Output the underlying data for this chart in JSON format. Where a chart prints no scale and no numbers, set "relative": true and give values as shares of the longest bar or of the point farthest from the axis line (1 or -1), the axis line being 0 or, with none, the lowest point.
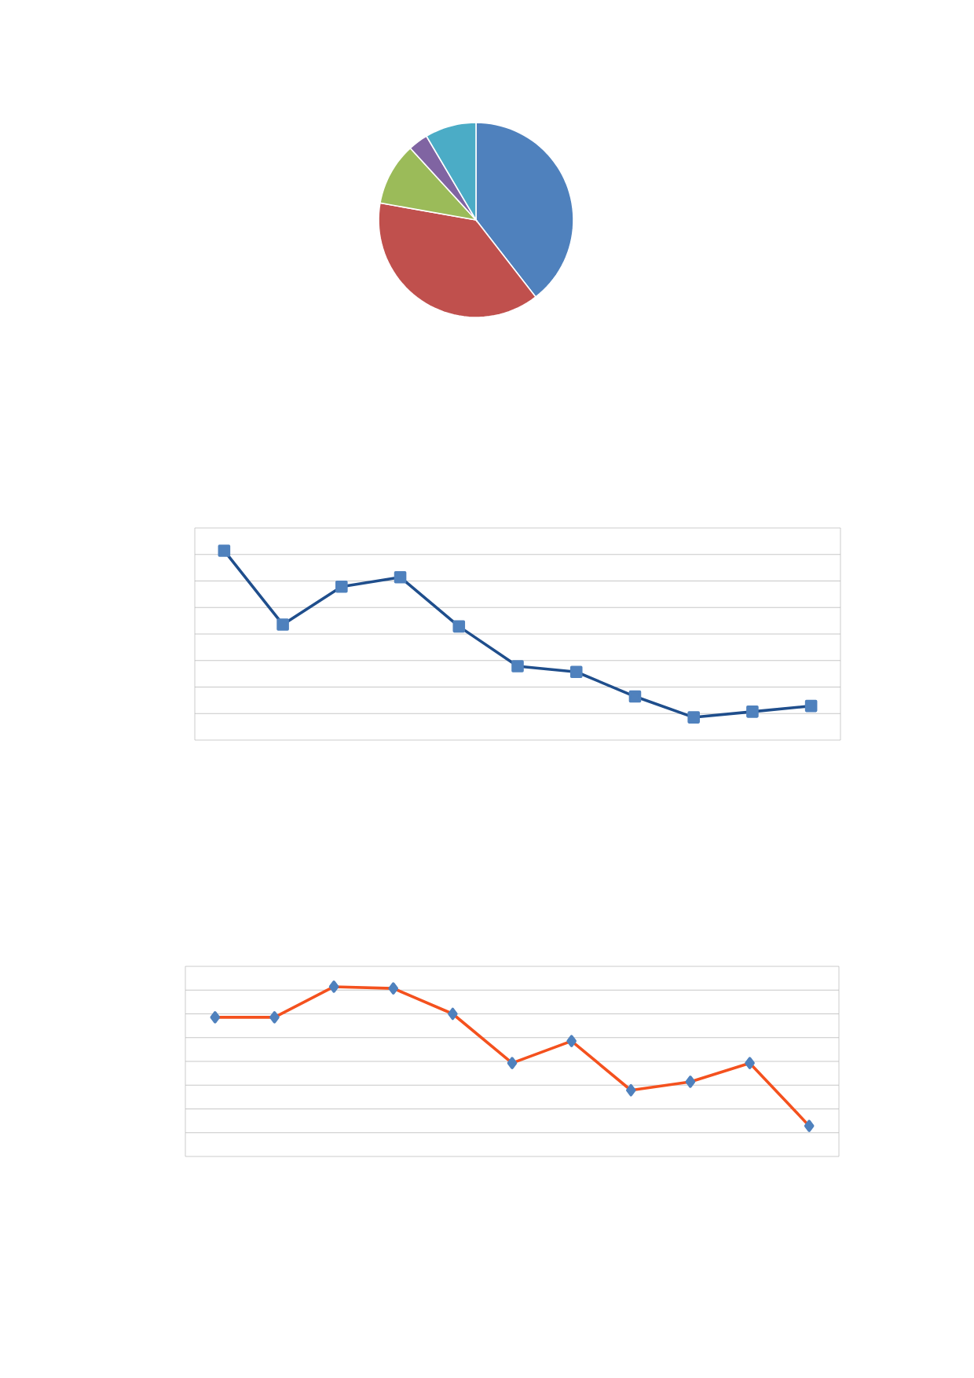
{
  "chart_data": [
    {
      "type": "pie",
      "categories": [
        null,
        null,
        null,
        null,
        null
      ],
      "values": [
        39.5,
        38.3,
        10.4,
        3.3,
        8.5
      ],
      "colors": [
        "#4f81bd",
        "#c0504d",
        "#9bbb59",
        "#8064a2",
        "#4bacc6"
      ]
    },
    {
      "type": "line",
      "relative": true,
      "categories": [
        null,
        null,
        null,
        null,
        null,
        null,
        null,
        null,
        null,
        null,
        null
      ],
      "grid": "y",
      "marker": "square",
      "series": [
        {
          "color": "#1f4e8c",
          "values": [
            1,
            0.61,
            0.81,
            0.86,
            0.6,
            0.39,
            0.36,
            0.23,
            0.12,
            0.15,
            0.18
          ]
        }
      ]
    },
    {
      "type": "line",
      "relative": true,
      "categories": [
        null,
        null,
        null,
        null,
        null,
        null,
        null,
        null,
        null,
        null,
        null
      ],
      "grid": "y",
      "marker": "diamond",
      "series": [
        {
          "color": "#f4511e",
          "values": [
            0.82,
            0.82,
            1,
            0.99,
            0.84,
            0.55,
            0.68,
            0.39,
            0.44,
            0.55,
            0.18
          ]
        }
      ]
    }
  ]
}
